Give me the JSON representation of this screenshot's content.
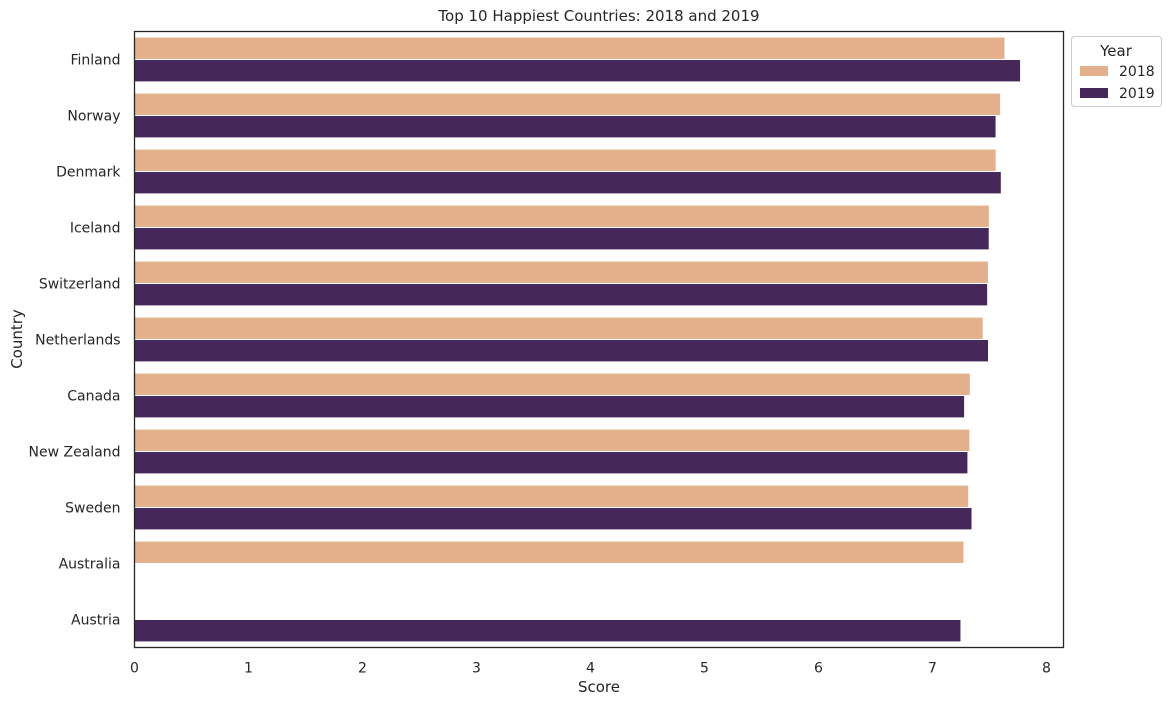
{
  "chart_data": {
    "type": "bar",
    "orientation": "horizontal",
    "title": "Top 10 Happiest Countries: 2018 and 2019",
    "xlabel": "Score",
    "ylabel": "Country",
    "xlim": [
      0,
      8.15
    ],
    "xticks": [
      "0",
      "1",
      "2",
      "3",
      "4",
      "5",
      "6",
      "7",
      "8"
    ],
    "grid": false,
    "legend": {
      "title": "Year",
      "position": "top-right-outside"
    },
    "categories": [
      "Finland",
      "Norway",
      "Denmark",
      "Iceland",
      "Switzerland",
      "Netherlands",
      "Canada",
      "New Zealand",
      "Sweden",
      "Australia",
      "Austria"
    ],
    "series": [
      {
        "name": "2018",
        "color": "#e4b08c",
        "values": [
          7.632,
          7.594,
          7.555,
          7.495,
          7.487,
          7.441,
          7.328,
          7.324,
          7.314,
          7.272,
          null
        ]
      },
      {
        "name": "2019",
        "color": "#46275a",
        "values": [
          7.769,
          7.554,
          7.6,
          7.494,
          7.48,
          7.488,
          7.278,
          7.307,
          7.343,
          null,
          7.246
        ]
      }
    ]
  }
}
